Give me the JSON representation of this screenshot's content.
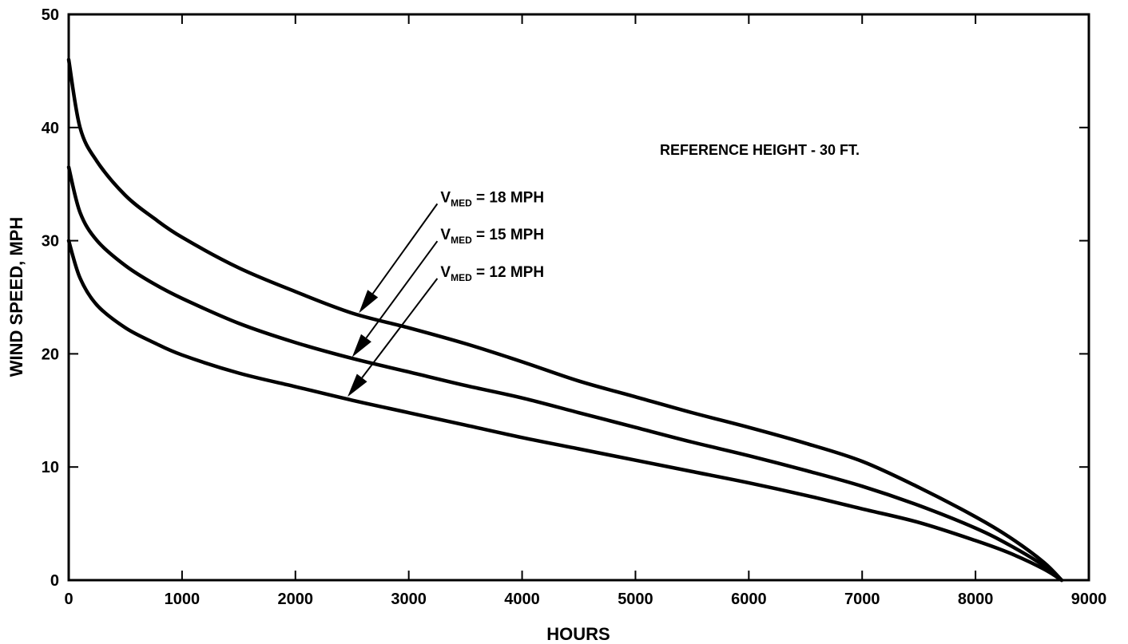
{
  "chart_data": {
    "type": "line",
    "title": "",
    "xlabel": "HOURS",
    "ylabel": "WIND SPEED, MPH",
    "xlim": [
      0,
      9000
    ],
    "ylim": [
      0,
      50
    ],
    "xticks": [
      0,
      1000,
      2000,
      3000,
      4000,
      5000,
      6000,
      7000,
      8000,
      9000
    ],
    "yticks": [
      0,
      10,
      20,
      30,
      40,
      50
    ],
    "grid": false,
    "legend": "none",
    "annotation": "REFERENCE HEIGHT - 30 FT.",
    "series": [
      {
        "name": "V_MED = 18 MPH",
        "label_main": "V",
        "label_sub": "MED",
        "label_rest": " = 18 MPH",
        "label_anchor": [
          3280,
          33.4
        ],
        "arrow_tip": [
          2560,
          23.6
        ],
        "points": [
          [
            0,
            46
          ],
          [
            100,
            40
          ],
          [
            250,
            37
          ],
          [
            500,
            34
          ],
          [
            750,
            32
          ],
          [
            1000,
            30.3
          ],
          [
            1500,
            27.6
          ],
          [
            2000,
            25.5
          ],
          [
            2500,
            23.6
          ],
          [
            3000,
            22.3
          ],
          [
            3500,
            20.9
          ],
          [
            4000,
            19.3
          ],
          [
            4500,
            17.6
          ],
          [
            5000,
            16.2
          ],
          [
            5500,
            14.8
          ],
          [
            6000,
            13.5
          ],
          [
            6500,
            12.1
          ],
          [
            7000,
            10.5
          ],
          [
            7500,
            8.2
          ],
          [
            8000,
            5.6
          ],
          [
            8300,
            3.8
          ],
          [
            8600,
            1.6
          ],
          [
            8760,
            0
          ]
        ]
      },
      {
        "name": "V_MED = 15 MPH",
        "label_main": "V",
        "label_sub": "MED",
        "label_rest": " = 15 MPH",
        "label_anchor": [
          3280,
          30.1
        ],
        "arrow_tip": [
          2500,
          19.7
        ],
        "points": [
          [
            0,
            36.5
          ],
          [
            100,
            32.5
          ],
          [
            250,
            30
          ],
          [
            500,
            27.8
          ],
          [
            750,
            26.2
          ],
          [
            1000,
            24.9
          ],
          [
            1500,
            22.7
          ],
          [
            2000,
            21
          ],
          [
            2500,
            19.6
          ],
          [
            3000,
            18.4
          ],
          [
            3500,
            17.2
          ],
          [
            4000,
            16.1
          ],
          [
            4500,
            14.8
          ],
          [
            5000,
            13.5
          ],
          [
            5500,
            12.2
          ],
          [
            6000,
            11
          ],
          [
            6500,
            9.7
          ],
          [
            7000,
            8.3
          ],
          [
            7500,
            6.6
          ],
          [
            8000,
            4.6
          ],
          [
            8300,
            3.1
          ],
          [
            8600,
            1.3
          ],
          [
            8760,
            0
          ]
        ]
      },
      {
        "name": "V_MED = 12 MPH",
        "label_main": "V",
        "label_sub": "MED",
        "label_rest": " = 12 MPH",
        "label_anchor": [
          3280,
          26.8
        ],
        "arrow_tip": [
          2460,
          16.2
        ],
        "points": [
          [
            0,
            30
          ],
          [
            100,
            26.7
          ],
          [
            250,
            24.3
          ],
          [
            500,
            22.3
          ],
          [
            750,
            21
          ],
          [
            1000,
            19.9
          ],
          [
            1500,
            18.3
          ],
          [
            2000,
            17.1
          ],
          [
            2500,
            15.9
          ],
          [
            3000,
            14.8
          ],
          [
            3500,
            13.7
          ],
          [
            4000,
            12.6
          ],
          [
            4500,
            11.6
          ],
          [
            5000,
            10.6
          ],
          [
            5500,
            9.6
          ],
          [
            6000,
            8.6
          ],
          [
            6500,
            7.5
          ],
          [
            7000,
            6.3
          ],
          [
            7500,
            5.1
          ],
          [
            8000,
            3.5
          ],
          [
            8300,
            2.4
          ],
          [
            8600,
            1
          ],
          [
            8760,
            0
          ]
        ]
      }
    ]
  }
}
